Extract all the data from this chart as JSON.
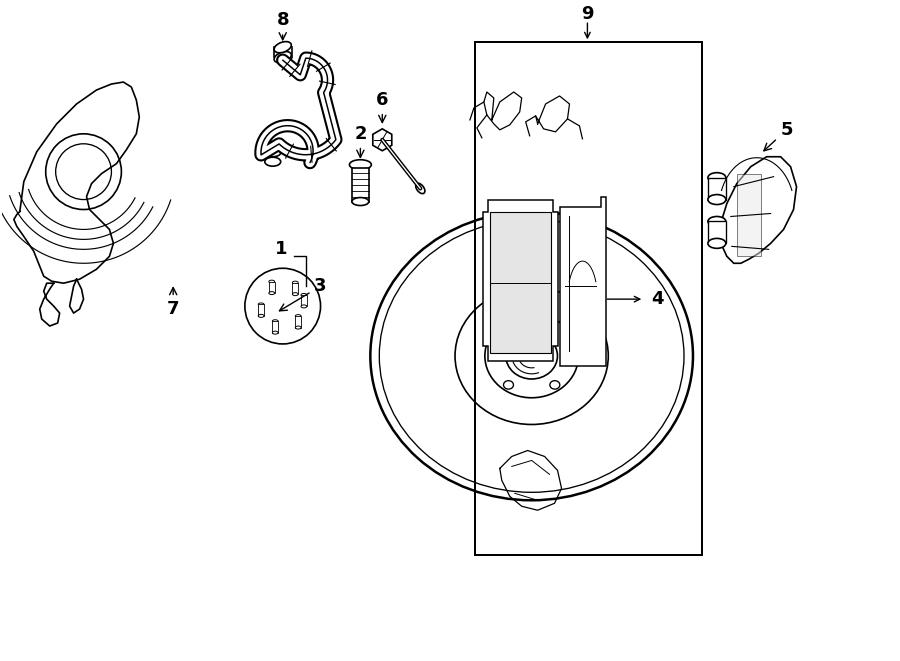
{
  "bg_color": "#ffffff",
  "lc": "#000000",
  "lw": 1.2,
  "fw": 9.0,
  "fh": 6.61,
  "dpi": 100,
  "xlim": [
    0,
    9.0
  ],
  "ylim": [
    0,
    6.61
  ]
}
